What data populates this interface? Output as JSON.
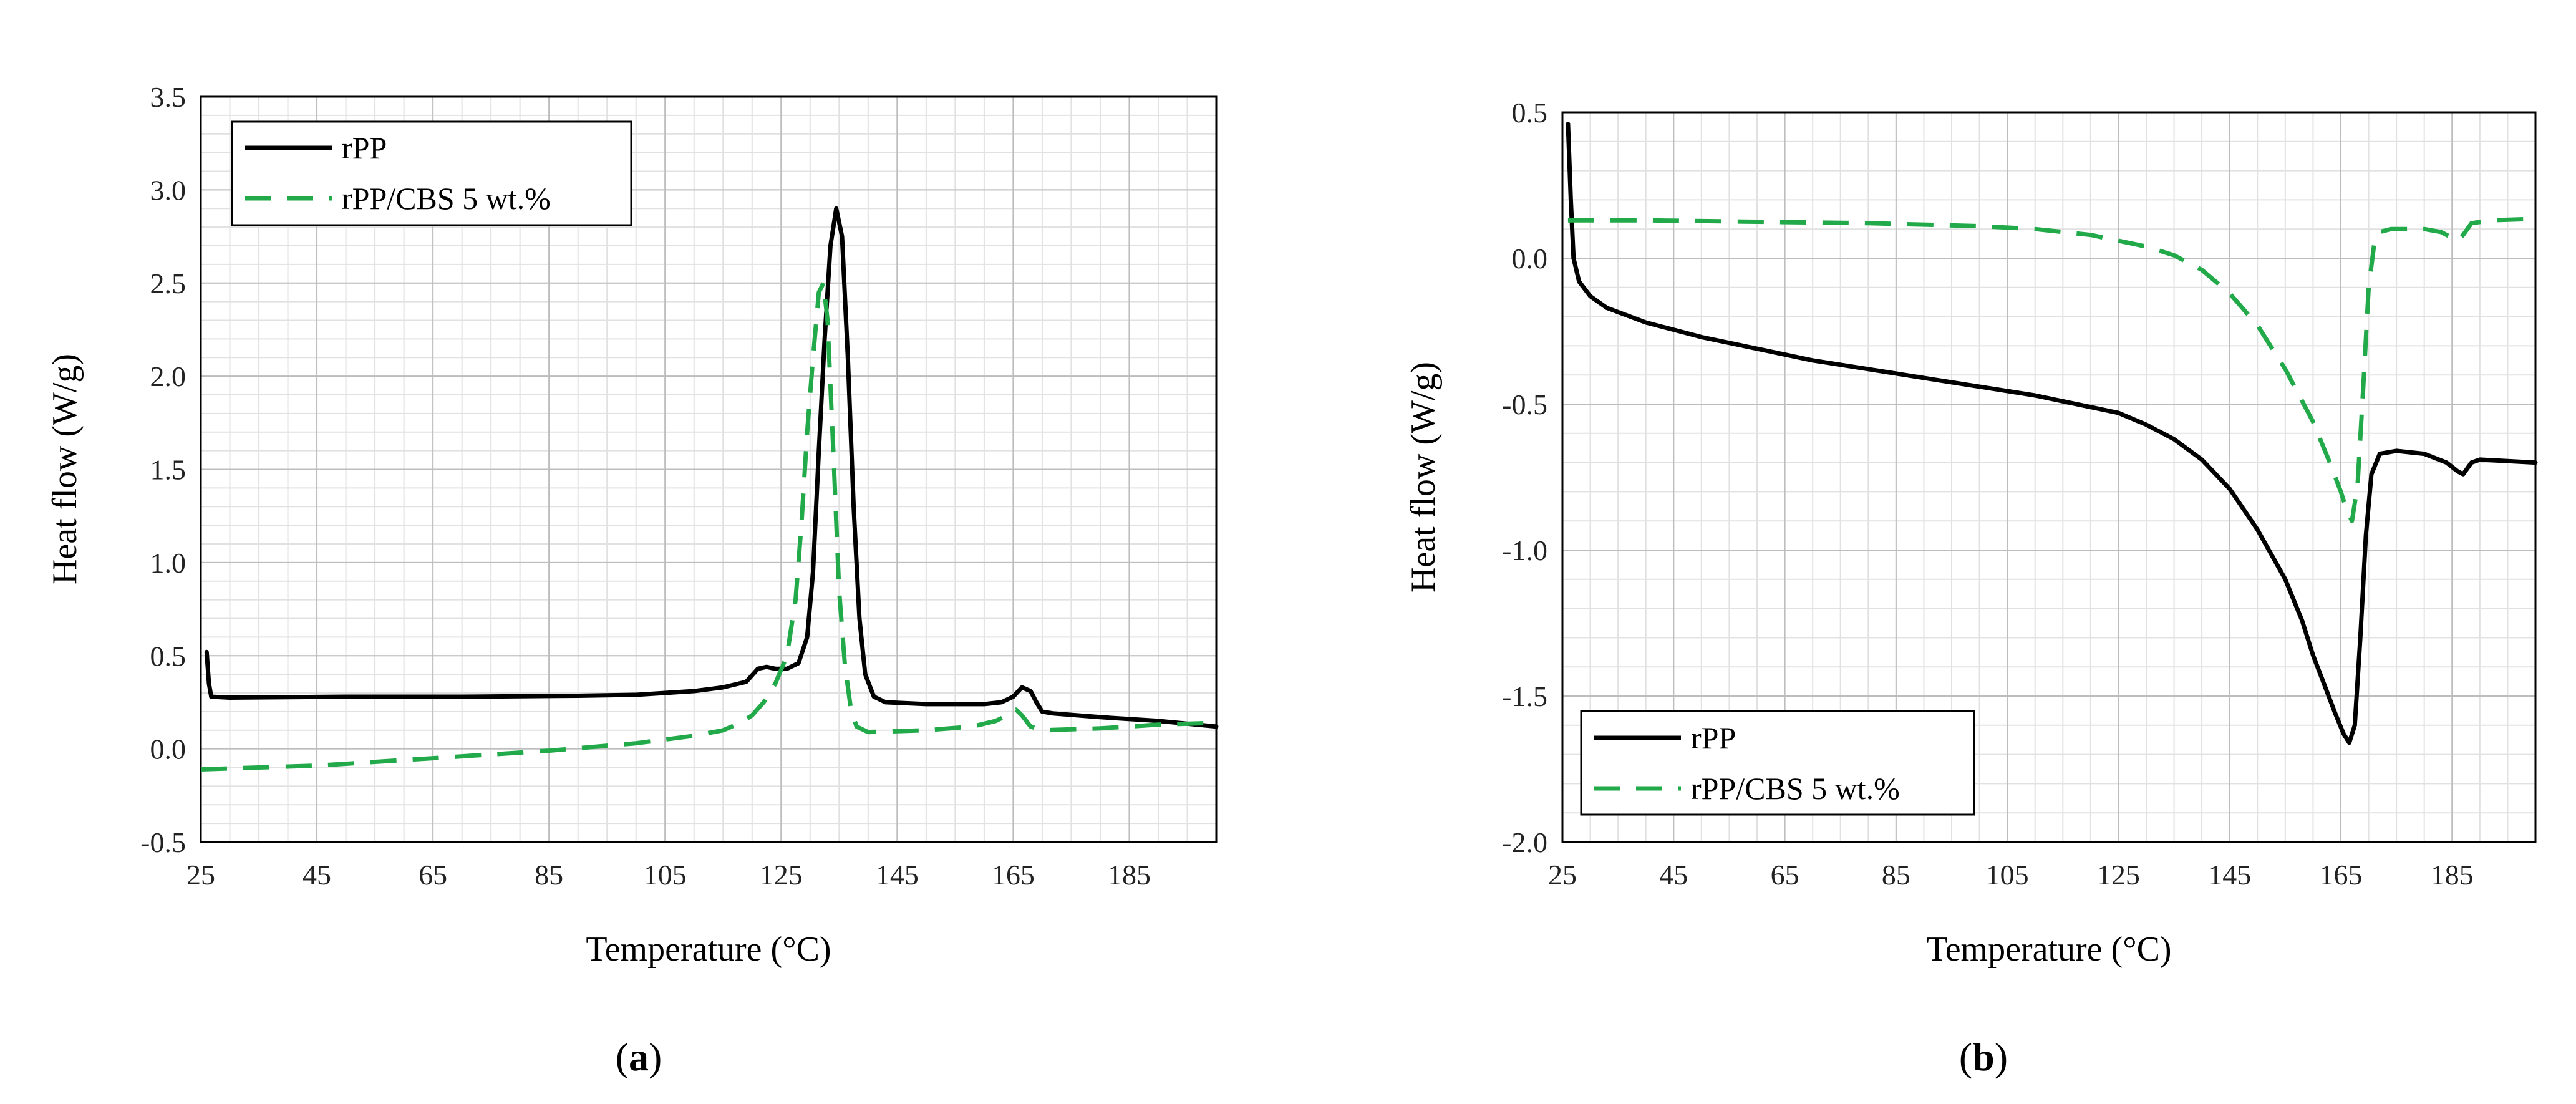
{
  "chart_data": [
    {
      "id": "a",
      "type": "line",
      "caption": "(a)",
      "caption_letter": "a",
      "xlabel": "Temperature (°C)",
      "ylabel": "Heat flow (W/g)",
      "xlim": [
        25,
        200
      ],
      "ylim": [
        -0.5,
        3.5
      ],
      "xticks": [
        25,
        45,
        65,
        85,
        105,
        125,
        145,
        165,
        185
      ],
      "xtick_labels": [
        "25",
        "45",
        "65",
        "85",
        "105",
        "125",
        "145",
        "165",
        "185"
      ],
      "yticks": [
        -0.5,
        0.0,
        0.5,
        1.0,
        1.5,
        2.0,
        2.5,
        3.0,
        3.5
      ],
      "ytick_labels": [
        "-0.5",
        "0.0",
        "0.5",
        "1.0",
        "1.5",
        "2.0",
        "2.5",
        "3.0",
        "3.5"
      ],
      "grid": true,
      "minor_grid_steps": {
        "x": 5,
        "y": 0.1
      },
      "legend_position": "top-left",
      "series": [
        {
          "name": "rPP",
          "color": "#000000",
          "style": "solid",
          "points": [
            [
              26,
              0.52
            ],
            [
              26.4,
              0.35
            ],
            [
              26.8,
              0.28
            ],
            [
              30,
              0.275
            ],
            [
              50,
              0.28
            ],
            [
              70,
              0.28
            ],
            [
              90,
              0.285
            ],
            [
              100,
              0.29
            ],
            [
              110,
              0.31
            ],
            [
              115,
              0.33
            ],
            [
              119,
              0.36
            ],
            [
              121,
              0.43
            ],
            [
              122.5,
              0.44
            ],
            [
              124,
              0.43
            ],
            [
              126,
              0.43
            ],
            [
              128,
              0.46
            ],
            [
              129.5,
              0.6
            ],
            [
              130.5,
              0.95
            ],
            [
              131.5,
              1.6
            ],
            [
              132.5,
              2.2
            ],
            [
              133.5,
              2.7
            ],
            [
              134.5,
              2.9
            ],
            [
              135.5,
              2.75
            ],
            [
              136.5,
              2.1
            ],
            [
              137.5,
              1.3
            ],
            [
              138.5,
              0.7
            ],
            [
              139.5,
              0.4
            ],
            [
              141,
              0.28
            ],
            [
              143,
              0.25
            ],
            [
              150,
              0.24
            ],
            [
              160,
              0.24
            ],
            [
              163,
              0.25
            ],
            [
              165,
              0.28
            ],
            [
              166.5,
              0.33
            ],
            [
              168,
              0.31
            ],
            [
              169,
              0.25
            ],
            [
              170,
              0.2
            ],
            [
              172,
              0.19
            ],
            [
              180,
              0.17
            ],
            [
              190,
              0.15
            ],
            [
              200,
              0.12
            ]
          ]
        },
        {
          "name": "rPP/CBS 5 wt.%",
          "color": "#22aa4a",
          "style": "dashed",
          "points": [
            [
              25,
              -0.11
            ],
            [
              45,
              -0.09
            ],
            [
              65,
              -0.05
            ],
            [
              85,
              -0.01
            ],
            [
              100,
              0.03
            ],
            [
              110,
              0.07
            ],
            [
              115,
              0.1
            ],
            [
              118,
              0.14
            ],
            [
              120,
              0.18
            ],
            [
              122,
              0.25
            ],
            [
              124,
              0.35
            ],
            [
              126,
              0.5
            ],
            [
              127.5,
              0.8
            ],
            [
              128.5,
              1.2
            ],
            [
              129.5,
              1.7
            ],
            [
              130.5,
              2.1
            ],
            [
              131.5,
              2.45
            ],
            [
              132.3,
              2.5
            ],
            [
              133,
              2.3
            ],
            [
              134,
              1.6
            ],
            [
              135,
              0.85
            ],
            [
              136,
              0.45
            ],
            [
              137,
              0.22
            ],
            [
              138,
              0.12
            ],
            [
              140,
              0.09
            ],
            [
              150,
              0.1
            ],
            [
              158,
              0.12
            ],
            [
              162,
              0.15
            ],
            [
              164,
              0.18
            ],
            [
              165.5,
              0.21
            ],
            [
              166.5,
              0.18
            ],
            [
              168,
              0.12
            ],
            [
              170,
              0.1
            ],
            [
              180,
              0.11
            ],
            [
              190,
              0.13
            ],
            [
              200,
              0.14
            ]
          ]
        }
      ]
    },
    {
      "id": "b",
      "type": "line",
      "caption": "(b)",
      "caption_letter": "b",
      "xlabel": "Temperature (°C)",
      "ylabel": "Heat flow (W/g)",
      "xlim": [
        25,
        200
      ],
      "ylim": [
        -2.0,
        0.5
      ],
      "xticks": [
        25,
        45,
        65,
        85,
        105,
        125,
        145,
        165,
        185
      ],
      "xtick_labels": [
        "25",
        "45",
        "65",
        "85",
        "105",
        "125",
        "145",
        "165",
        "185"
      ],
      "yticks": [
        -2.0,
        -1.5,
        -1.0,
        -0.5,
        0.0,
        0.5
      ],
      "ytick_labels": [
        "-2.0",
        "-1.5",
        "-1.0",
        "-0.5",
        "0.0",
        "0.5"
      ],
      "grid": true,
      "minor_grid_steps": {
        "x": 5,
        "y": 0.1
      },
      "legend_position": "bottom-left",
      "series": [
        {
          "name": "rPP",
          "color": "#000000",
          "style": "solid",
          "points": [
            [
              26,
              0.46
            ],
            [
              26.5,
              0.2
            ],
            [
              27,
              0.0
            ],
            [
              28,
              -0.08
            ],
            [
              30,
              -0.13
            ],
            [
              33,
              -0.17
            ],
            [
              40,
              -0.22
            ],
            [
              50,
              -0.27
            ],
            [
              60,
              -0.31
            ],
            [
              70,
              -0.35
            ],
            [
              80,
              -0.38
            ],
            [
              90,
              -0.41
            ],
            [
              100,
              -0.44
            ],
            [
              110,
              -0.47
            ],
            [
              120,
              -0.51
            ],
            [
              125,
              -0.53
            ],
            [
              130,
              -0.57
            ],
            [
              135,
              -0.62
            ],
            [
              140,
              -0.69
            ],
            [
              145,
              -0.79
            ],
            [
              150,
              -0.93
            ],
            [
              155,
              -1.1
            ],
            [
              158,
              -1.24
            ],
            [
              160,
              -1.36
            ],
            [
              162,
              -1.46
            ],
            [
              164,
              -1.56
            ],
            [
              165.5,
              -1.63
            ],
            [
              166.5,
              -1.66
            ],
            [
              167.5,
              -1.6
            ],
            [
              168.5,
              -1.3
            ],
            [
              169.5,
              -0.95
            ],
            [
              170.5,
              -0.74
            ],
            [
              172,
              -0.67
            ],
            [
              175,
              -0.66
            ],
            [
              180,
              -0.67
            ],
            [
              184,
              -0.7
            ],
            [
              186,
              -0.73
            ],
            [
              187,
              -0.74
            ],
            [
              188.5,
              -0.7
            ],
            [
              190,
              -0.69
            ],
            [
              200,
              -0.7
            ]
          ]
        },
        {
          "name": "rPP/CBS 5 wt.%",
          "color": "#22aa4a",
          "style": "dashed",
          "points": [
            [
              26,
              0.13
            ],
            [
              40,
              0.13
            ],
            [
              60,
              0.125
            ],
            [
              80,
              0.12
            ],
            [
              100,
              0.11
            ],
            [
              110,
              0.1
            ],
            [
              120,
              0.08
            ],
            [
              125,
              0.06
            ],
            [
              130,
              0.04
            ],
            [
              135,
              0.01
            ],
            [
              140,
              -0.04
            ],
            [
              145,
              -0.12
            ],
            [
              150,
              -0.23
            ],
            [
              155,
              -0.38
            ],
            [
              160,
              -0.56
            ],
            [
              163,
              -0.7
            ],
            [
              165,
              -0.8
            ],
            [
              166,
              -0.86
            ],
            [
              167,
              -0.9
            ],
            [
              168,
              -0.78
            ],
            [
              169,
              -0.45
            ],
            [
              170,
              -0.1
            ],
            [
              171,
              0.05
            ],
            [
              172,
              0.09
            ],
            [
              174,
              0.1
            ],
            [
              180,
              0.1
            ],
            [
              183,
              0.09
            ],
            [
              185,
              0.07
            ],
            [
              186,
              0.06
            ],
            [
              187,
              0.08
            ],
            [
              188.5,
              0.12
            ],
            [
              192,
              0.13
            ],
            [
              200,
              0.135
            ]
          ]
        }
      ]
    }
  ]
}
